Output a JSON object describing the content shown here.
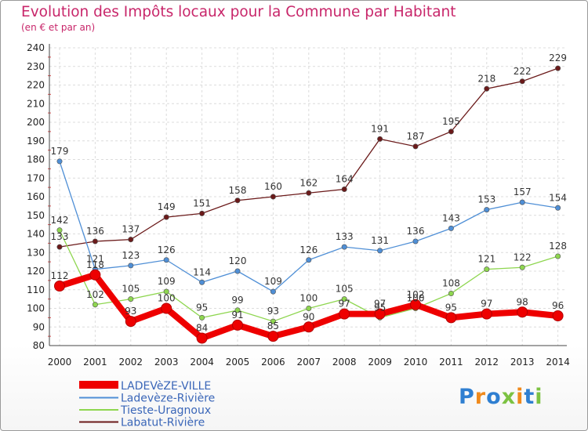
{
  "title": "Evolution des Impôts locaux pour la Commune par Habitant",
  "subtitle": "(en € et par an)",
  "logo": {
    "text": "Proxiti",
    "colors": [
      "#2f7fd1",
      "#f08a1c",
      "#2f7fd1",
      "#7cc242",
      "#f08a1c",
      "#2f7fd1",
      "#7cc242"
    ]
  },
  "chart_data": {
    "type": "line",
    "x": [
      "2000",
      "2001",
      "2002",
      "2003",
      "2004",
      "2005",
      "2006",
      "2007",
      "2008",
      "2009",
      "2010",
      "2011",
      "2012",
      "2013",
      "2014"
    ],
    "ylim": [
      80,
      240
    ],
    "yticks": [
      80,
      90,
      100,
      110,
      120,
      130,
      140,
      150,
      160,
      170,
      180,
      190,
      200,
      210,
      220,
      230,
      240
    ],
    "grid": true,
    "legend_placement": "bottom-left",
    "series": [
      {
        "name": "LADEVèZE-VILLE",
        "color": "#ee0000",
        "values": [
          112,
          118,
          93,
          100,
          84,
          91,
          85,
          90,
          97,
          97,
          102,
          95,
          97,
          98,
          96
        ]
      },
      {
        "name": "Ladevèze-Rivière",
        "color": "#4f8fd6",
        "values": [
          179,
          121,
          123,
          126,
          114,
          120,
          109,
          126,
          133,
          131,
          136,
          143,
          153,
          157,
          154
        ]
      },
      {
        "name": "Tieste-Uragnoux",
        "color": "#8ed64f",
        "values": [
          142,
          102,
          105,
          109,
          95,
          99,
          93,
          100,
          105,
          95,
          100,
          108,
          121,
          122,
          128
        ]
      },
      {
        "name": "Labatut-Rivière",
        "color": "#6b1a1a",
        "values": [
          133,
          136,
          137,
          149,
          151,
          158,
          160,
          162,
          164,
          191,
          187,
          195,
          218,
          222,
          229
        ]
      }
    ]
  }
}
